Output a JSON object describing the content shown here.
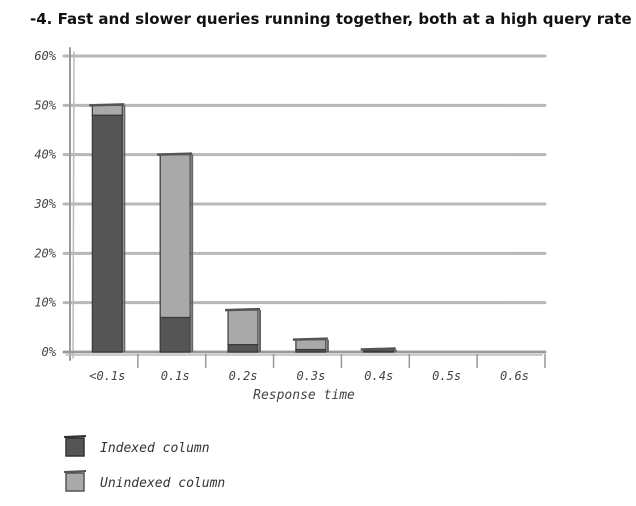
{
  "chart_data": {
    "type": "bar",
    "stacked": true,
    "title": "-4. Fast and slower queries running together, both at a high query rate",
    "xlabel": "Response time",
    "ylabel": "",
    "categories": [
      "<0.1s",
      "0.1s",
      "0.2s",
      "0.3s",
      "0.4s",
      "0.5s",
      "0.6s"
    ],
    "series": [
      {
        "name": "Indexed column",
        "values": [
          48,
          7,
          1.5,
          0.5,
          0.2,
          0,
          0
        ],
        "color": "#555555"
      },
      {
        "name": "Unindexed column",
        "values": [
          2,
          33,
          7,
          2,
          0.3,
          0,
          0
        ],
        "color": "#a9a9a9"
      }
    ],
    "yticks": [
      "0%",
      "10%",
      "20%",
      "30%",
      "40%",
      "50%",
      "60%"
    ],
    "ylim": [
      0,
      60
    ],
    "grid": true,
    "legend": "bottom-left"
  }
}
